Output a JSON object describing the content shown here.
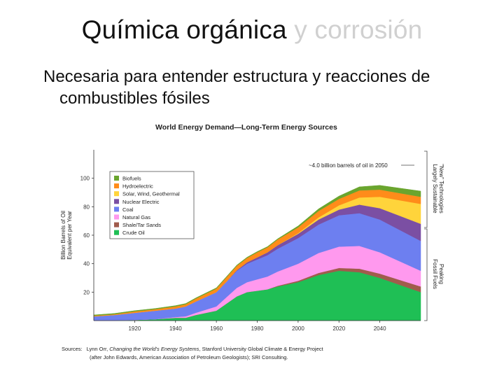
{
  "slide": {
    "title_main": "Química orgánica",
    "title_rest": "y corrosión",
    "bullet_line1": "Necesaria para entender estructura y reacciones de",
    "bullet_line2": "combustibles fósiles"
  },
  "chart_data": {
    "type": "area",
    "stacked": true,
    "title": "World Energy Demand—Long-Term Energy Sources",
    "ylabel": "Billion Barrels of Oil Equivalent per Year",
    "xlabel": "",
    "xlim": [
      1900,
      2060
    ],
    "ylim": [
      0,
      120
    ],
    "x_ticks": [
      1920,
      1940,
      1960,
      1980,
      2000,
      2020,
      2040
    ],
    "y_ticks": [
      20,
      40,
      60,
      80,
      100
    ],
    "x": [
      1900,
      1910,
      1920,
      1930,
      1940,
      1945,
      1950,
      1960,
      1965,
      1970,
      1975,
      1980,
      1985,
      1990,
      2000,
      2010,
      2020,
      2030,
      2040,
      2050,
      2060
    ],
    "series": [
      {
        "name": "Crude Oil",
        "color": "#1fbf55",
        "values": [
          0,
          0,
          0.5,
          1,
          2,
          2,
          4,
          7,
          12,
          17,
          20,
          21,
          22,
          24,
          27,
          32,
          35,
          34,
          30,
          25,
          20
        ]
      },
      {
        "name": "Shale/Tar Sands",
        "color": "#a05c4c",
        "values": [
          0,
          0,
          0,
          0,
          0,
          0,
          0,
          0,
          0,
          0,
          0,
          0,
          0,
          0.5,
          1,
          1.5,
          2,
          2.5,
          3,
          3.5,
          4
        ]
      },
      {
        "name": "Natural Gas",
        "color": "#ff99ee",
        "values": [
          0,
          0,
          0,
          0,
          0.5,
          1,
          1.5,
          3,
          4.5,
          6,
          7,
          8,
          9,
          10,
          12,
          14,
          15,
          16,
          15,
          13,
          11
        ]
      },
      {
        "name": "Coal",
        "color": "#6d7ff0",
        "values": [
          3,
          4,
          5,
          6,
          6,
          7,
          8,
          10,
          11,
          12,
          13,
          14,
          15,
          16,
          18,
          20,
          22,
          23,
          23,
          22,
          21
        ]
      },
      {
        "name": "Nuclear Electric",
        "color": "#7b4fa3",
        "values": [
          0,
          0,
          0,
          0,
          0,
          0,
          0,
          0,
          0,
          0.5,
          1,
          1.5,
          2,
          2.5,
          3,
          3.5,
          4,
          6,
          8,
          10,
          12
        ]
      },
      {
        "name": "Solar, Wind, Geothermal",
        "color": "#ffd43b",
        "values": [
          0,
          0,
          0,
          0,
          0,
          0,
          0,
          0,
          0,
          0,
          0,
          0,
          0,
          0,
          0.5,
          1.5,
          3,
          5,
          8,
          11,
          14
        ]
      },
      {
        "name": "Hydroelectric",
        "color": "#ff8c1a",
        "values": [
          0.5,
          0.5,
          1,
          1,
          1.5,
          1.5,
          2,
          2.5,
          3,
          3,
          3,
          3.5,
          3.5,
          4,
          4,
          4.5,
          4.5,
          5,
          5,
          5,
          5
        ]
      },
      {
        "name": "Biofuels",
        "color": "#6aa52e",
        "values": [
          0.5,
          0.5,
          0.5,
          0.5,
          0.5,
          0.5,
          0.5,
          0.5,
          0.5,
          0.5,
          0.5,
          0.5,
          0.5,
          0.5,
          1,
          1.5,
          2,
          2.5,
          3,
          3.5,
          4
        ]
      }
    ],
    "legend_order": [
      "Biofuels",
      "Hydroelectric",
      "Solar, Wind, Geothermal",
      "Nuclear Electric",
      "Coal",
      "Natural Gas",
      "Shale/Tar Sands",
      "Crude Oil"
    ],
    "legend_position": "top-left",
    "annotation": "~4.0 billion barrels of oil in 2050",
    "bracket_top_label_1": "\"New\" Technologies",
    "bracket_top_label_2": "Largely Sustainable",
    "bracket_bottom_label_1": "Peaking",
    "bracket_bottom_label_2": "Fossil Fuels",
    "sources_label": "Sources:",
    "sources_line1_pre": "Lynn Orr, ",
    "sources_line1_italic": "Changing the World's Energy Systems",
    "sources_line1_post": ", Stanford University Global Climate & Energy Project",
    "sources_line2": "(after John Edwards, American Association of Petroleum Geologists); SRI Consulting."
  }
}
